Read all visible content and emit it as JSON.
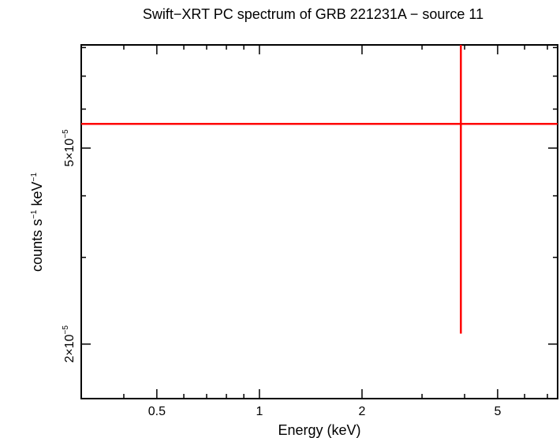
{
  "chart_data": {
    "type": "scatter",
    "title": "Swift−XRT PC spectrum of GRB 221231A − source 11",
    "xlabel": "Energy (keV)",
    "ylabel": {
      "base1": "counts s",
      "exp1": "−1",
      "base2": " keV",
      "exp2": "−1"
    },
    "xscale": "log",
    "yscale": "log",
    "xlim": [
      0.3,
      7.5
    ],
    "ylim": [
      1.55e-05,
      8.1e-05
    ],
    "x_ticks": [
      {
        "value": 0.5,
        "label": "0.5"
      },
      {
        "value": 1,
        "label": "1"
      },
      {
        "value": 2,
        "label": "2"
      },
      {
        "value": 5,
        "label": "5"
      }
    ],
    "y_ticks": [
      {
        "value": 2e-05,
        "base": "2×10",
        "exp": "−5"
      },
      {
        "value": 5e-05,
        "base": "5×10",
        "exp": "−5"
      }
    ],
    "series": [
      {
        "color": "#ff0000",
        "points": [
          {
            "x": 3.9,
            "y": 5.6e-05,
            "xerr": [
              0.3,
              7.5
            ],
            "yerr": [
              2.1e-05,
              8.1e-05
            ]
          }
        ]
      }
    ]
  }
}
